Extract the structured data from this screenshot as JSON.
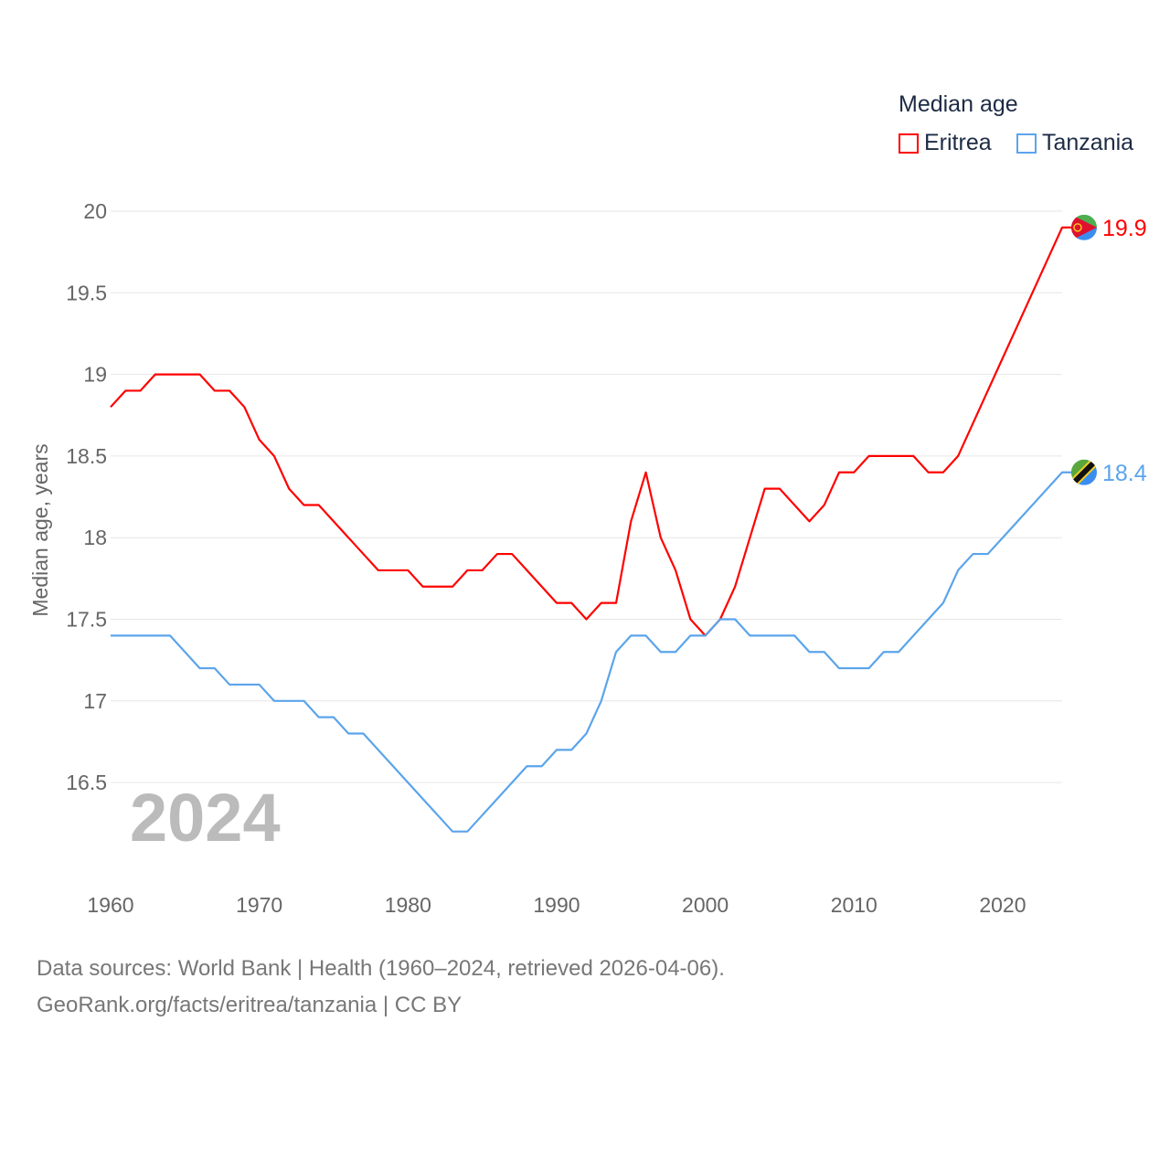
{
  "chart_data": {
    "type": "line",
    "title": "Median age",
    "ylabel": "Median age, years",
    "xlabel": "",
    "xlim": [
      1960,
      2024
    ],
    "ylim": [
      16,
      20
    ],
    "yticks": [
      16.5,
      17,
      17.5,
      18,
      18.5,
      19,
      19.5,
      20
    ],
    "ytick_labels": [
      "16.5",
      "17",
      "17.5",
      "18",
      "18.5",
      "19",
      "19.5",
      "20"
    ],
    "xticks": [
      1960,
      1970,
      1980,
      1990,
      2000,
      2010,
      2020
    ],
    "xtick_labels": [
      "1960",
      "1970",
      "1980",
      "1990",
      "2000",
      "2010",
      "2020"
    ],
    "grid": true,
    "legend_placement": "top-right",
    "year_label": "2024",
    "x": [
      1960,
      1961,
      1962,
      1963,
      1964,
      1965,
      1966,
      1967,
      1968,
      1969,
      1970,
      1971,
      1972,
      1973,
      1974,
      1975,
      1976,
      1977,
      1978,
      1979,
      1980,
      1981,
      1982,
      1983,
      1984,
      1985,
      1986,
      1987,
      1988,
      1989,
      1990,
      1991,
      1992,
      1993,
      1994,
      1995,
      1996,
      1997,
      1998,
      1999,
      2000,
      2001,
      2002,
      2003,
      2004,
      2005,
      2006,
      2007,
      2008,
      2009,
      2010,
      2011,
      2012,
      2013,
      2014,
      2015,
      2016,
      2017,
      2018,
      2019,
      2020,
      2021,
      2022,
      2023,
      2024
    ],
    "series": [
      {
        "name": "Eritrea",
        "color": "#ff0000",
        "end_label": "19.9",
        "flag": "eritrea-flag",
        "values": [
          18.8,
          18.9,
          18.9,
          19.0,
          19.0,
          19.0,
          19.0,
          18.9,
          18.9,
          18.8,
          18.6,
          18.5,
          18.3,
          18.2,
          18.2,
          18.1,
          18.0,
          17.9,
          17.8,
          17.8,
          17.8,
          17.7,
          17.7,
          17.7,
          17.8,
          17.8,
          17.9,
          17.9,
          17.8,
          17.7,
          17.6,
          17.6,
          17.5,
          17.6,
          17.6,
          18.1,
          18.4,
          18.0,
          17.8,
          17.5,
          17.4,
          17.5,
          17.7,
          18.0,
          18.3,
          18.3,
          18.2,
          18.1,
          18.2,
          18.4,
          18.4,
          18.5,
          18.5,
          18.5,
          18.5,
          18.4,
          18.4,
          18.5,
          18.7,
          18.9,
          19.1,
          19.3,
          19.5,
          19.7,
          19.9
        ]
      },
      {
        "name": "Tanzania",
        "color": "#5ba4eb",
        "end_label": "18.4",
        "flag": "tanzania-flag",
        "values": [
          17.4,
          17.4,
          17.4,
          17.4,
          17.4,
          17.3,
          17.2,
          17.2,
          17.1,
          17.1,
          17.1,
          17.0,
          17.0,
          17.0,
          16.9,
          16.9,
          16.8,
          16.8,
          16.7,
          16.6,
          16.5,
          16.4,
          16.3,
          16.2,
          16.2,
          16.3,
          16.4,
          16.5,
          16.6,
          16.6,
          16.7,
          16.7,
          16.8,
          17.0,
          17.3,
          17.4,
          17.4,
          17.3,
          17.3,
          17.4,
          17.4,
          17.5,
          17.5,
          17.4,
          17.4,
          17.4,
          17.4,
          17.3,
          17.3,
          17.2,
          17.2,
          17.2,
          17.3,
          17.3,
          17.4,
          17.5,
          17.6,
          17.8,
          17.9,
          17.9,
          18.0,
          18.1,
          18.2,
          18.3,
          18.4
        ]
      }
    ]
  },
  "footer": {
    "sources": "Data sources: World Bank | Health (1960–2024, retrieved 2026-04-06).",
    "credit": "GeoRank.org/facts/eritrea/tanzania | CC BY"
  }
}
